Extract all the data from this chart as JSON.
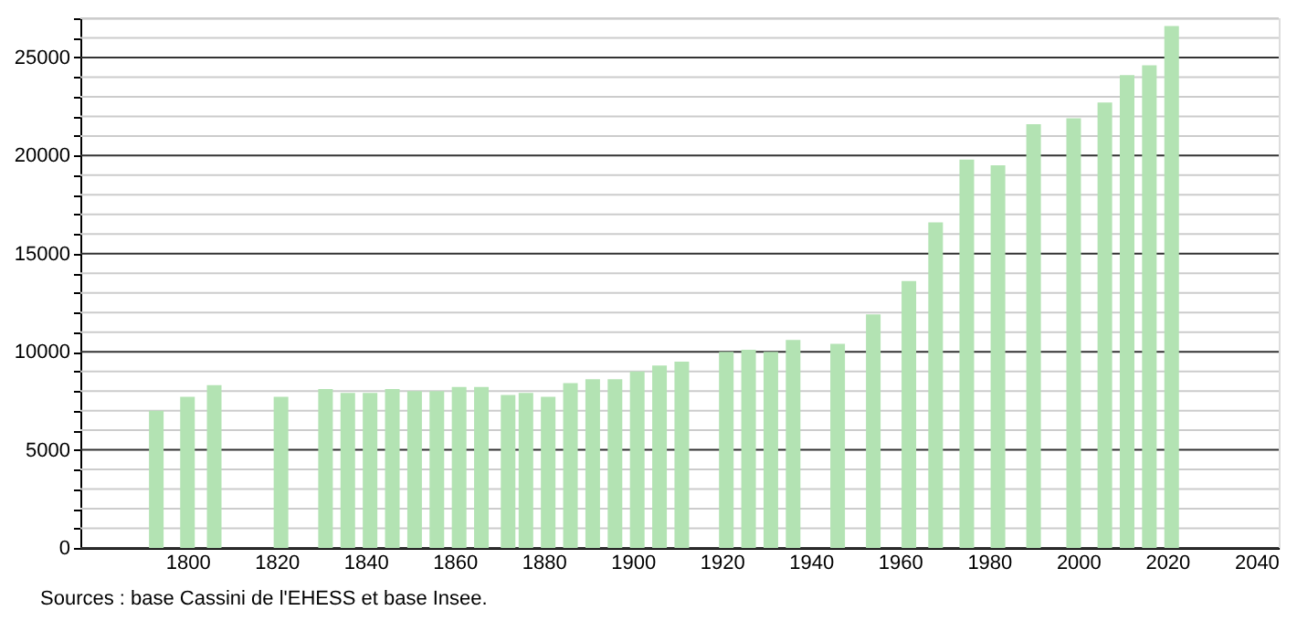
{
  "chart_data": {
    "type": "bar",
    "x": [
      1793,
      1800,
      1806,
      1821,
      1831,
      1836,
      1841,
      1846,
      1851,
      1856,
      1861,
      1866,
      1872,
      1876,
      1881,
      1886,
      1891,
      1896,
      1901,
      1906,
      1911,
      1921,
      1926,
      1931,
      1936,
      1946,
      1954,
      1962,
      1968,
      1975,
      1982,
      1990,
      1999,
      2006,
      2011,
      2016,
      2021
    ],
    "values": [
      7000,
      7700,
      8300,
      7700,
      8100,
      7900,
      7900,
      8100,
      8000,
      8000,
      8200,
      8200,
      7800,
      7900,
      7700,
      8400,
      8600,
      8600,
      9000,
      9300,
      9500,
      10000,
      10100,
      10000,
      10600,
      10400,
      11900,
      13600,
      16600,
      19800,
      19500,
      21600,
      21900,
      22700,
      24100,
      24600,
      26600
    ],
    "color": "#b3e3b3",
    "xlim": [
      1778,
      2043
    ],
    "xticks": [
      1800,
      1820,
      1840,
      1860,
      1880,
      1900,
      1920,
      1940,
      1960,
      1980,
      2000,
      2020,
      2040
    ],
    "ylim": [
      0,
      27000
    ],
    "yticks": [
      0,
      {
        "value": 1000,
        "label": null
      },
      {
        "value": 2000,
        "label": null
      },
      {
        "value": 3000,
        "label": null
      },
      {
        "value": 4000,
        "label": null
      },
      5000,
      {
        "value": 6000,
        "label": null
      },
      {
        "value": 7000,
        "label": null
      },
      {
        "value": 8000,
        "label": null
      },
      {
        "value": 9000,
        "label": null
      },
      10000,
      {
        "value": 11000,
        "label": null
      },
      {
        "value": 12000,
        "label": null
      },
      {
        "value": 13000,
        "label": null
      },
      {
        "value": 14000,
        "label": null
      },
      15000,
      {
        "value": 16000,
        "label": null
      },
      {
        "value": 17000,
        "label": null
      },
      {
        "value": 18000,
        "label": null
      },
      {
        "value": 19000,
        "label": null
      },
      20000,
      {
        "value": 21000,
        "label": null
      },
      {
        "value": 22000,
        "label": null
      },
      {
        "value": 23000,
        "label": null
      },
      {
        "value": 24000,
        "label": null
      },
      25000,
      {
        "value": 26000,
        "label": null
      },
      {
        "value": 27000,
        "label": null
      }
    ],
    "grid": "y",
    "annotations": [
      "Sources : base Cassini de l'EHESS et base Insee."
    ]
  }
}
